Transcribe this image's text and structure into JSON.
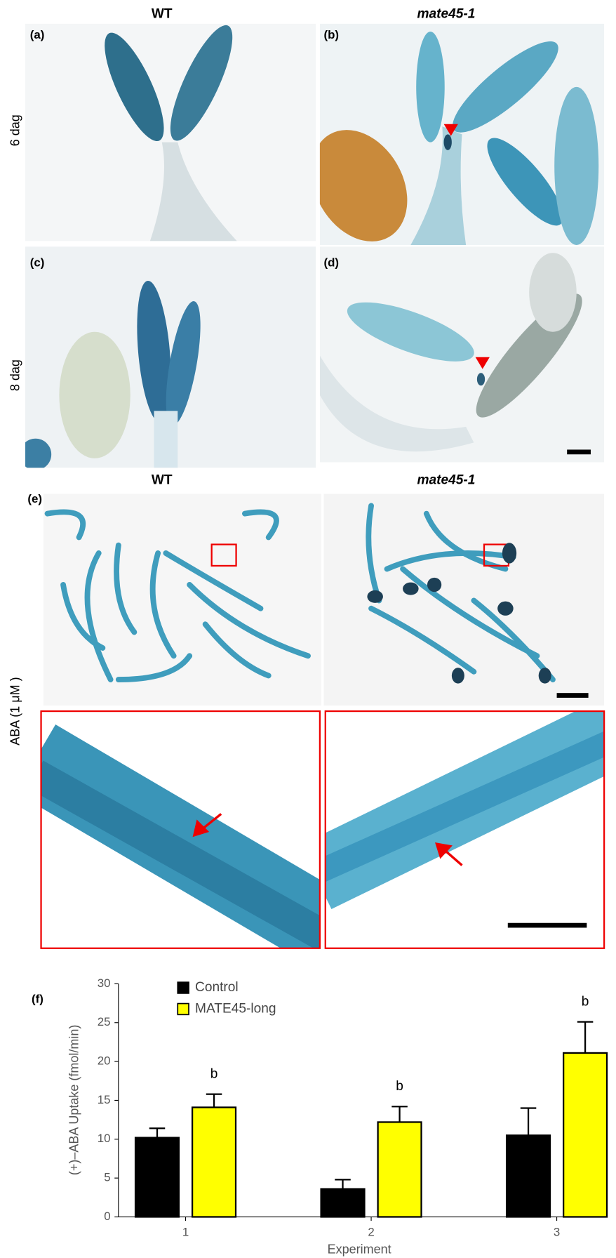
{
  "column_headers": [
    "WT",
    "mate45-1"
  ],
  "row_labels": [
    "6 dag",
    "8 dag",
    "ABA (1 μM )"
  ],
  "panel_labels": [
    "(a)",
    "(b)",
    "(c)",
    "(d)",
    "(e)"
  ],
  "chart_data": {
    "type": "bar",
    "panel_label": "(f)",
    "x_label": "Experiment",
    "y_label": "(+)–ABA Uptake (fmol/min)",
    "categories": [
      "1",
      "2",
      "3"
    ],
    "series": [
      {
        "name": "Control",
        "color": "#000000",
        "values": [
          10.2,
          3.6,
          10.5
        ],
        "errors": [
          1.2,
          1.2,
          3.5
        ]
      },
      {
        "name": "MATE45-long",
        "color": "#ffff00",
        "values": [
          14.1,
          12.2,
          21.1
        ],
        "errors": [
          1.7,
          2.0,
          4.0
        ],
        "significance": [
          "b",
          "b",
          "b"
        ]
      }
    ],
    "ylim": [
      0,
      30
    ],
    "yticks": [
      0,
      5,
      10,
      15,
      20,
      25,
      30
    ]
  }
}
